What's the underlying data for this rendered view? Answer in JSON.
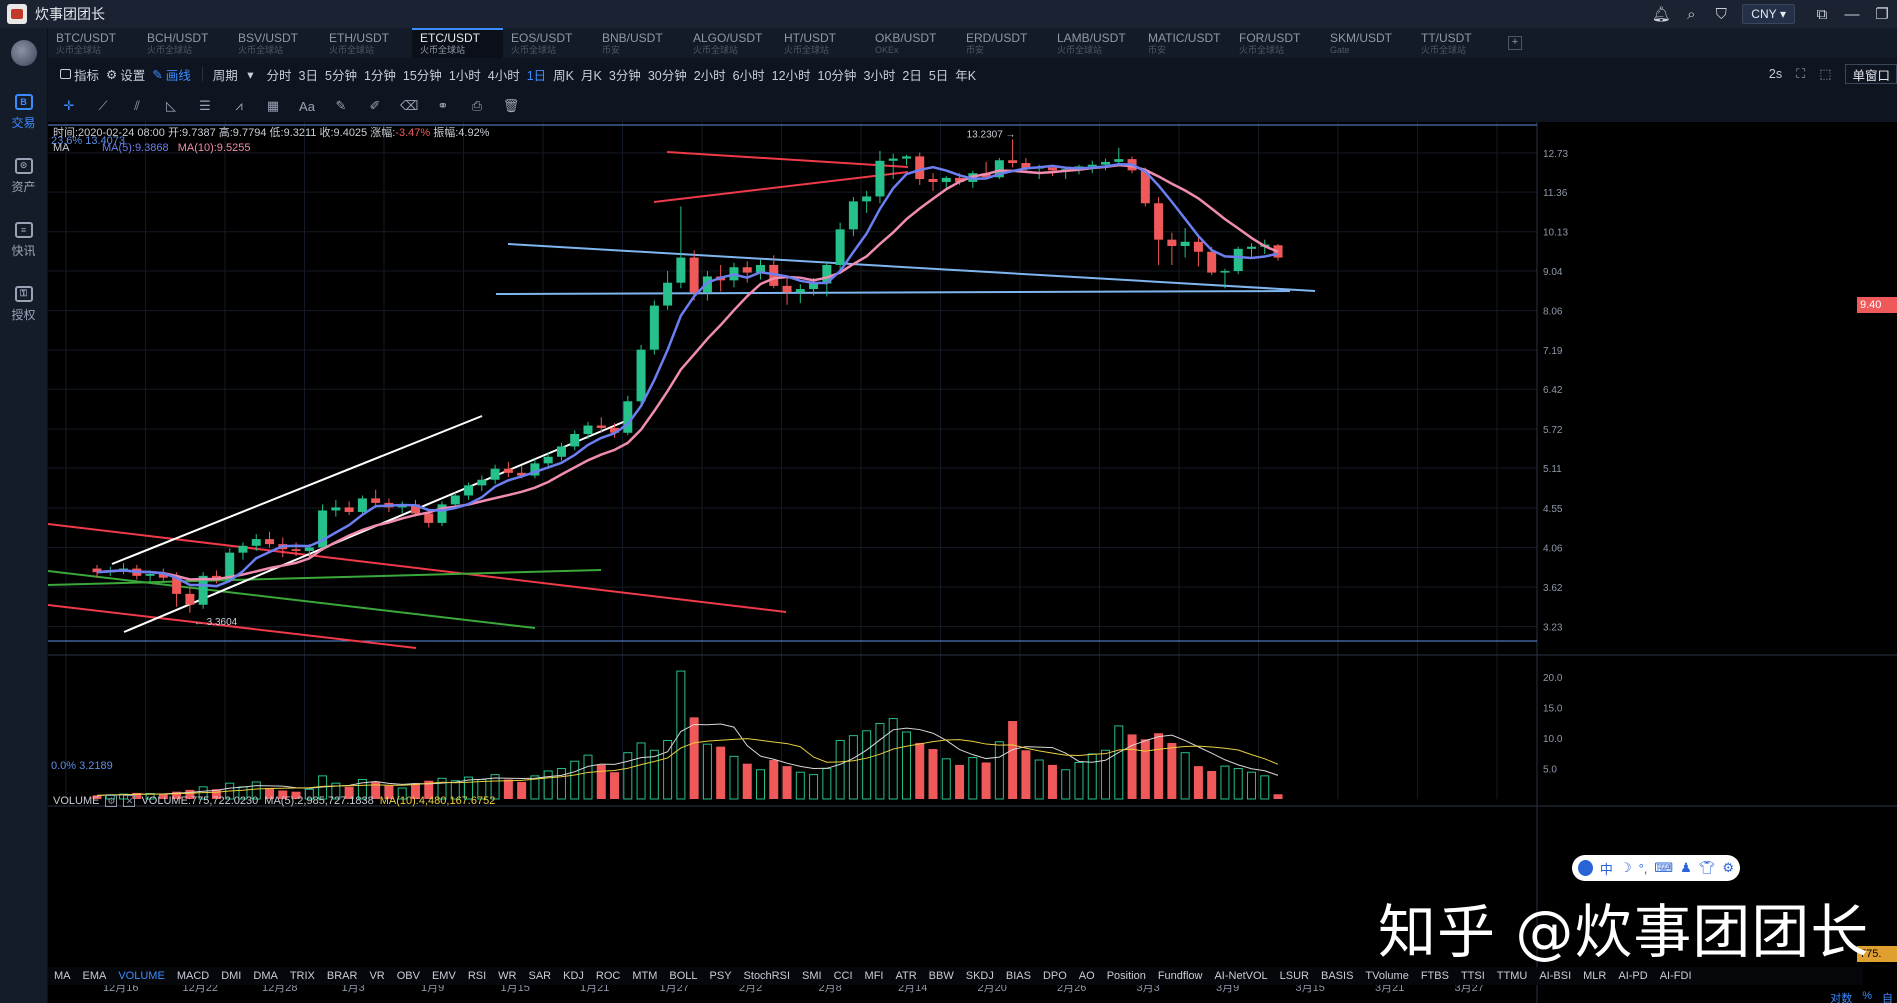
{
  "window": {
    "title": "炊事团团长",
    "currency": "CNY"
  },
  "sidebar": {
    "items": [
      {
        "label": "交易",
        "glyph": "B"
      },
      {
        "label": "资产",
        "glyph": "⊙"
      },
      {
        "label": "快讯",
        "glyph": "≡"
      },
      {
        "label": "授权",
        "glyph": "⚿"
      }
    ]
  },
  "pairs": [
    {
      "name": "BTC/USDT",
      "sub": "火币全球站"
    },
    {
      "name": "BCH/USDT",
      "sub": "火币全球站"
    },
    {
      "name": "BSV/USDT",
      "sub": "火币全球站"
    },
    {
      "name": "ETH/USDT",
      "sub": "火币全球站"
    },
    {
      "name": "ETC/USDT",
      "sub": "火币全球站"
    },
    {
      "name": "EOS/USDT",
      "sub": "火币全球站"
    },
    {
      "name": "BNB/USDT",
      "sub": "币安"
    },
    {
      "name": "ALGO/USDT",
      "sub": "火币全球站"
    },
    {
      "name": "HT/USDT",
      "sub": "火币全球站"
    },
    {
      "name": "OKB/USDT",
      "sub": "OKEx"
    },
    {
      "name": "ERD/USDT",
      "sub": "币安"
    },
    {
      "name": "LAMB/USDT",
      "sub": "火币全球站"
    },
    {
      "name": "MATIC/USDT",
      "sub": "币安"
    },
    {
      "name": "FOR/USDT",
      "sub": "火币全球站"
    },
    {
      "name": "SKM/USDT",
      "sub": "Gate"
    },
    {
      "name": "TT/USDT",
      "sub": "火币全球站"
    }
  ],
  "toolbar": {
    "indicator": "指标",
    "settings": "设置",
    "draw": "画线",
    "period": "周期",
    "intervals": [
      "分时",
      "3日",
      "5分钟",
      "1分钟",
      "15分钟",
      "1小时",
      "4小时",
      "1日",
      "周K",
      "月K",
      "3分钟",
      "30分钟",
      "2小时",
      "6小时",
      "12小时",
      "10分钟",
      "3小时",
      "2日",
      "5日",
      "年K"
    ],
    "active_interval": "1日",
    "refresh": "2s",
    "single_window": "单窗口"
  },
  "drawing_tools": [
    "crosshair-tool",
    "line-tool",
    "channel-tool",
    "angle-tool",
    "horizontal-tool",
    "wave-tool",
    "fib-tool",
    "text-tool",
    "brush-tool",
    "pen-tool",
    "eraser-tool",
    "link-tool",
    "lock-tool",
    "trash-tool"
  ],
  "drawing_tool_glyphs": [
    "✛",
    "⟋",
    "⫽",
    "◺",
    "☰",
    "⩘",
    "▦",
    "Aa",
    "✎",
    "✐",
    "⌫",
    "⚭",
    "⎙",
    "🗑"
  ],
  "info": {
    "time": "时间:2020-02-24 08:00",
    "open": "开:9.7387",
    "high": "高:9.7794",
    "low": "低:9.3211",
    "close": "收:9.4025",
    "change_label": "涨幅:",
    "change": "-3.47%",
    "amplitude": "振幅:4.92%"
  },
  "ma": {
    "label": "MA",
    "ma5": "MA(5):9.3868",
    "ma10": "MA(10):9.5255",
    "color_ma5": "#6c7ff0",
    "color_ma10": "#f08cb0"
  },
  "fib": {
    "top": "23.6% 13.4073",
    "bottom": "0.0% 3.2189"
  },
  "annotations": {
    "high": "13.2307 →",
    "low": "← 3.3604"
  },
  "volume": {
    "label": "VOLUME",
    "value": "VOLUME:775,722.0230",
    "ma5": "MA(5):2,985,727.1838",
    "ma10": "MA(10):4,480,167.6752",
    "tag": "775."
  },
  "price_axis": [
    "12.73",
    "11.36",
    "10.13",
    "9.04",
    "8.06",
    "7.19",
    "6.42",
    "5.72",
    "5.11",
    "4.55",
    "4.06",
    "3.62",
    "3.23"
  ],
  "current_price_tag": "9.40",
  "volume_axis": [
    "20.0",
    "15.0",
    "10.0",
    "5.0"
  ],
  "date_axis": [
    "12月16",
    "12月22",
    "12月28",
    "1月3",
    "1月9",
    "1月15",
    "1月21",
    "1月27",
    "2月2",
    "2月8",
    "2月14",
    "2月20",
    "2月26",
    "3月3",
    "3月9",
    "3月15",
    "3月21",
    "3月27"
  ],
  "indicators": [
    "MA",
    "EMA",
    "VOLUME",
    "MACD",
    "DMI",
    "DMA",
    "TRIX",
    "BRAR",
    "VR",
    "OBV",
    "EMV",
    "RSI",
    "WR",
    "SAR",
    "KDJ",
    "ROC",
    "MTM",
    "BOLL",
    "PSY",
    "StochRSI",
    "SMI",
    "CCI",
    "MFI",
    "ATR",
    "BBW",
    "SKDJ",
    "BIAS",
    "DPO",
    "AO",
    "Position",
    "Fundflow",
    "AI-NetVOL",
    "LSUR",
    "BASIS",
    "TVolume",
    "FTBS",
    "TTSI",
    "TTMU",
    "AI-BSI",
    "MLR",
    "AI-PD",
    "AI-FDI"
  ],
  "active_indicator": "VOLUME",
  "bottom_right": [
    "对数",
    "%",
    "自"
  ],
  "watermark": "知乎 @炊事团团长",
  "colors": {
    "up": "#26c08a",
    "down": "#f0595a",
    "accent": "#3b8cff",
    "trend_white": "#ffffff",
    "trend_red": "#f03a4a",
    "trend_green": "#3aa83a",
    "trend_blue": "#7fb6f0"
  },
  "chart_data": {
    "type": "candlestick",
    "x_start": "2019-12-12",
    "interval": "1日",
    "candles": [
      [
        3.82,
        3.86,
        3.72,
        3.78
      ],
      [
        3.78,
        3.84,
        3.74,
        3.8
      ],
      [
        3.8,
        3.88,
        3.76,
        3.82
      ],
      [
        3.82,
        3.86,
        3.7,
        3.74
      ],
      [
        3.74,
        3.8,
        3.68,
        3.76
      ],
      [
        3.76,
        3.82,
        3.68,
        3.72
      ],
      [
        3.72,
        3.78,
        3.42,
        3.55
      ],
      [
        3.55,
        3.62,
        3.36,
        3.44
      ],
      [
        3.44,
        3.78,
        3.4,
        3.74
      ],
      [
        3.74,
        3.8,
        3.66,
        3.7
      ],
      [
        3.7,
        4.05,
        3.68,
        4.0
      ],
      [
        4.0,
        4.12,
        3.92,
        4.08
      ],
      [
        4.08,
        4.22,
        4.02,
        4.16
      ],
      [
        4.16,
        4.25,
        4.06,
        4.1
      ],
      [
        4.1,
        4.18,
        3.95,
        4.04
      ],
      [
        4.04,
        4.12,
        3.96,
        4.02
      ],
      [
        4.02,
        4.1,
        3.94,
        4.06
      ],
      [
        4.06,
        4.6,
        4.02,
        4.52
      ],
      [
        4.52,
        4.66,
        4.44,
        4.56
      ],
      [
        4.56,
        4.64,
        4.46,
        4.5
      ],
      [
        4.5,
        4.72,
        4.46,
        4.68
      ],
      [
        4.68,
        4.8,
        4.58,
        4.62
      ],
      [
        4.62,
        4.68,
        4.5,
        4.56
      ],
      [
        4.56,
        4.64,
        4.48,
        4.6
      ],
      [
        4.6,
        4.66,
        4.44,
        4.48
      ],
      [
        4.48,
        4.54,
        4.3,
        4.36
      ],
      [
        4.36,
        4.64,
        4.32,
        4.6
      ],
      [
        4.6,
        4.76,
        4.56,
        4.72
      ],
      [
        4.72,
        4.9,
        4.66,
        4.86
      ],
      [
        4.86,
        5.0,
        4.78,
        4.94
      ],
      [
        4.94,
        5.16,
        4.88,
        5.1
      ],
      [
        5.1,
        5.2,
        4.98,
        5.04
      ],
      [
        5.04,
        5.14,
        4.96,
        5.0
      ],
      [
        5.0,
        5.24,
        4.96,
        5.18
      ],
      [
        5.18,
        5.34,
        5.1,
        5.28
      ],
      [
        5.28,
        5.5,
        5.22,
        5.44
      ],
      [
        5.44,
        5.7,
        5.38,
        5.64
      ],
      [
        5.64,
        5.84,
        5.56,
        5.78
      ],
      [
        5.78,
        5.92,
        5.66,
        5.74
      ],
      [
        5.74,
        5.82,
        5.58,
        5.66
      ],
      [
        5.66,
        6.3,
        5.62,
        6.2
      ],
      [
        6.2,
        7.3,
        6.14,
        7.2
      ],
      [
        7.2,
        8.3,
        7.1,
        8.18
      ],
      [
        8.18,
        9.04,
        8.08,
        8.74
      ],
      [
        8.74,
        10.9,
        8.6,
        9.4
      ],
      [
        9.4,
        9.6,
        8.3,
        8.5
      ],
      [
        8.5,
        9.04,
        8.3,
        8.9
      ],
      [
        8.9,
        9.2,
        8.52,
        8.8
      ],
      [
        8.8,
        9.26,
        8.62,
        9.14
      ],
      [
        9.14,
        9.3,
        8.74,
        9.0
      ],
      [
        9.0,
        9.34,
        8.82,
        9.2
      ],
      [
        9.2,
        9.46,
        8.6,
        8.66
      ],
      [
        8.66,
        8.9,
        8.2,
        8.5
      ],
      [
        8.5,
        8.7,
        8.24,
        8.58
      ],
      [
        8.58,
        8.86,
        8.42,
        8.72
      ],
      [
        8.72,
        9.3,
        8.4,
        9.2
      ],
      [
        9.2,
        10.4,
        9.0,
        10.2
      ],
      [
        10.2,
        11.2,
        10.0,
        11.06
      ],
      [
        11.06,
        11.4,
        10.7,
        11.22
      ],
      [
        11.22,
        12.8,
        11.0,
        12.44
      ],
      [
        12.44,
        12.7,
        11.8,
        12.52
      ],
      [
        12.52,
        12.66,
        12.28,
        12.6
      ],
      [
        12.6,
        12.74,
        11.6,
        11.8
      ],
      [
        11.8,
        12.0,
        11.4,
        11.7
      ],
      [
        11.7,
        11.9,
        11.5,
        11.84
      ],
      [
        11.84,
        12.0,
        11.6,
        11.7
      ],
      [
        11.7,
        12.08,
        11.5,
        12.0
      ],
      [
        12.0,
        12.4,
        11.8,
        11.86
      ],
      [
        11.86,
        12.54,
        11.8,
        12.46
      ],
      [
        12.46,
        13.23,
        12.2,
        12.36
      ],
      [
        12.36,
        12.54,
        12.06,
        12.16
      ],
      [
        12.16,
        12.3,
        11.8,
        12.2
      ],
      [
        12.2,
        12.3,
        11.9,
        12.1
      ],
      [
        12.1,
        12.22,
        11.8,
        12.14
      ],
      [
        12.14,
        12.3,
        11.96,
        12.24
      ],
      [
        12.24,
        12.44,
        12.0,
        12.3
      ],
      [
        12.3,
        12.52,
        12.1,
        12.4
      ],
      [
        12.4,
        12.92,
        12.3,
        12.5
      ],
      [
        12.5,
        12.6,
        12.0,
        12.1
      ],
      [
        12.1,
        12.2,
        10.9,
        11.0
      ],
      [
        11.0,
        11.2,
        9.2,
        9.9
      ],
      [
        9.9,
        10.1,
        9.2,
        9.72
      ],
      [
        9.72,
        10.24,
        9.4,
        9.84
      ],
      [
        9.84,
        10.04,
        9.16,
        9.56
      ],
      [
        9.56,
        9.7,
        8.94,
        9.0
      ],
      [
        9.0,
        9.1,
        8.6,
        9.04
      ],
      [
        9.04,
        9.7,
        8.96,
        9.64
      ],
      [
        9.64,
        9.8,
        9.4,
        9.7
      ],
      [
        9.7,
        9.9,
        9.5,
        9.76
      ],
      [
        9.74,
        9.78,
        9.32,
        9.4
      ]
    ],
    "volume_unit": "百万",
    "volumes": [
      0.6,
      0.7,
      0.8,
      1.0,
      0.9,
      0.8,
      1.2,
      1.5,
      2.0,
      1.6,
      2.6,
      2.0,
      2.8,
      1.8,
      1.4,
      1.2,
      1.6,
      3.8,
      2.6,
      2.0,
      3.2,
      2.8,
      2.2,
      1.8,
      2.6,
      3.0,
      3.4,
      3.0,
      3.6,
      3.2,
      4.0,
      3.2,
      2.8,
      3.8,
      4.6,
      5.0,
      6.2,
      7.2,
      5.6,
      4.4,
      7.6,
      9.2,
      8.0,
      9.6,
      21.0,
      13.4,
      9.0,
      8.6,
      7.0,
      5.8,
      4.8,
      6.4,
      5.4,
      4.4,
      4.0,
      5.0,
      9.6,
      10.4,
      11.2,
      12.4,
      13.2,
      11.0,
      9.2,
      8.2,
      6.6,
      5.6,
      6.8,
      6.0,
      9.4,
      12.8,
      8.0,
      6.4,
      5.6,
      4.8,
      6.0,
      7.4,
      8.0,
      12.0,
      10.6,
      9.8,
      10.8,
      9.2,
      7.6,
      5.4,
      4.6,
      5.4,
      5.0,
      4.4,
      3.8,
      0.78
    ],
    "price_ylim": [
      3.0,
      13.6
    ],
    "volume_ylim": [
      0,
      22
    ],
    "log_scale": true
  }
}
